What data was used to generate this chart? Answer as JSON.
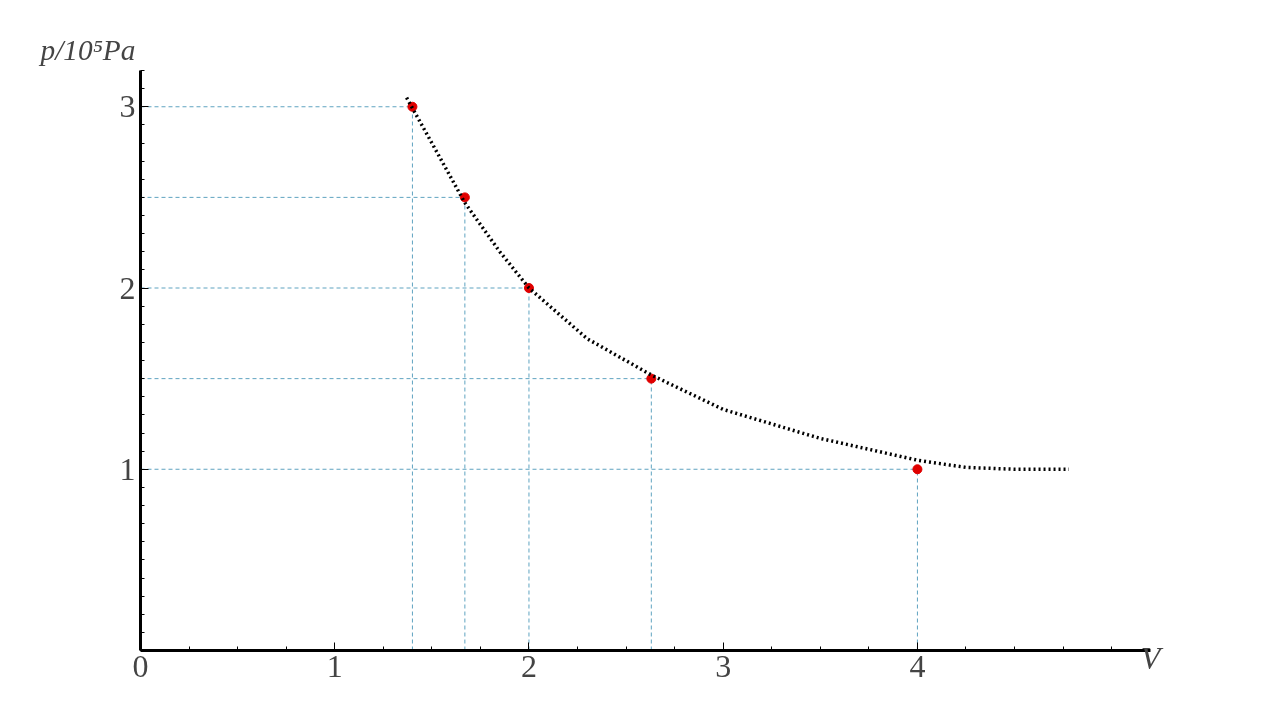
{
  "chart_data": {
    "type": "scatter",
    "xlabel": "V",
    "ylabel": "p/10⁵Pa",
    "xlim": [
      0,
      5.2
    ],
    "ylim": [
      0,
      3.2
    ],
    "xticks": [
      0,
      1,
      2,
      3,
      4
    ],
    "yticks": [
      1,
      2,
      3
    ],
    "series": [
      {
        "color": "#e00000",
        "marker": "circle",
        "x": [
          1.4,
          1.67,
          2,
          2.63,
          4
        ],
        "values": [
          3,
          2.5,
          2,
          1.5,
          1
        ]
      },
      {
        "type": "line",
        "color": "#000000",
        "line_style": "dotted",
        "x": [
          1.37,
          1.5,
          1.67,
          1.85,
          2.0,
          2.3,
          2.63,
          3.0,
          3.5,
          4.0,
          4.25,
          4.5,
          4.78
        ],
        "values": [
          3.05,
          2.8,
          2.47,
          2.2,
          2.0,
          1.72,
          1.52,
          1.33,
          1.17,
          1.05,
          1.01,
          1.0,
          1.0
        ]
      }
    ],
    "ref_lines": [
      {
        "axis": "y",
        "value": 3,
        "color": "#5fa3c0",
        "line_style": "dashed"
      },
      {
        "axis": "y",
        "value": 2.5,
        "color": "#5fa3c0",
        "line_style": "dashed"
      },
      {
        "axis": "y",
        "value": 2,
        "color": "#5fa3c0",
        "line_style": "dashed"
      },
      {
        "axis": "y",
        "value": 1.5,
        "color": "#5fa3c0",
        "line_style": "dashed"
      },
      {
        "axis": "y",
        "value": 1,
        "color": "#5fa3c0",
        "line_style": "dashed"
      },
      {
        "axis": "x",
        "value": 1.4,
        "color": "#5fa3c0",
        "line_style": "dashed"
      },
      {
        "axis": "x",
        "value": 1.67,
        "color": "#5fa3c0",
        "line_style": "dashed"
      },
      {
        "axis": "x",
        "value": 2,
        "color": "#5fa3c0",
        "line_style": "dashed"
      },
      {
        "axis": "x",
        "value": 2.63,
        "color": "#5fa3c0",
        "line_style": "dashed"
      },
      {
        "axis": "x",
        "value": 4,
        "color": "#5fa3c0",
        "line_style": "dashed"
      }
    ],
    "grid": false
  }
}
